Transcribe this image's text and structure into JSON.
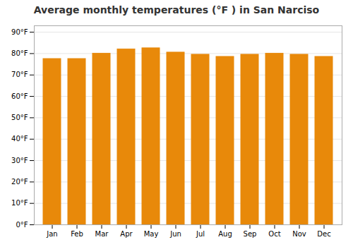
{
  "chart_data": {
    "type": "bar",
    "title": "Average monthly temperatures (°F ) in San Narciso",
    "categories": [
      "Jan",
      "Feb",
      "Mar",
      "Apr",
      "May",
      "Jun",
      "Jul",
      "Aug",
      "Sep",
      "Oct",
      "Nov",
      "Dec"
    ],
    "values": [
      77.5,
      77.5,
      80.0,
      82.0,
      82.5,
      80.5,
      79.5,
      78.5,
      79.5,
      80.0,
      79.5,
      78.5
    ],
    "color": "#E8890A",
    "ylim": [
      0,
      93
    ],
    "yticks": [
      {
        "value": 0,
        "label": "0°F"
      },
      {
        "value": 10,
        "label": "10°F"
      },
      {
        "value": 20,
        "label": "20°F"
      },
      {
        "value": 30,
        "label": "30°F"
      },
      {
        "value": 40,
        "label": "40°F"
      },
      {
        "value": 50,
        "label": "50°F"
      },
      {
        "value": 60,
        "label": "60°F"
      },
      {
        "value": 70,
        "label": "70°F"
      },
      {
        "value": 80,
        "label": "80°F"
      },
      {
        "value": 90,
        "label": "90°F"
      }
    ],
    "grid": true
  }
}
